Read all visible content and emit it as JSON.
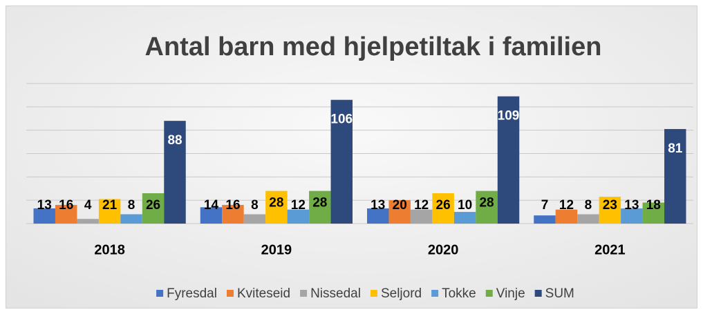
{
  "chart_data": {
    "type": "bar",
    "title": "Antal barn med hjelpetiltak i familien",
    "categories": [
      "2018",
      "2019",
      "2020",
      "2021"
    ],
    "series": [
      {
        "name": "Fyresdal",
        "color": "#4472c4",
        "values": [
          13,
          14,
          13,
          7
        ]
      },
      {
        "name": "Kviteseid",
        "color": "#ed7d31",
        "values": [
          16,
          16,
          20,
          12
        ]
      },
      {
        "name": "Nissedal",
        "color": "#a5a5a5",
        "values": [
          4,
          8,
          12,
          8
        ]
      },
      {
        "name": "Seljord",
        "color": "#ffc000",
        "values": [
          21,
          28,
          26,
          23
        ]
      },
      {
        "name": "Tokke",
        "color": "#5b9bd5",
        "values": [
          8,
          12,
          10,
          13
        ]
      },
      {
        "name": "Vinje",
        "color": "#70ad47",
        "values": [
          26,
          28,
          28,
          18
        ]
      },
      {
        "name": "SUM",
        "color": "#2e4a7d",
        "values": [
          88,
          106,
          109,
          81
        ]
      }
    ],
    "ylim": [
      0,
      120
    ],
    "yticks": [
      0,
      20,
      40,
      60,
      80,
      100,
      120
    ],
    "grid": true,
    "legend": "bottom"
  }
}
